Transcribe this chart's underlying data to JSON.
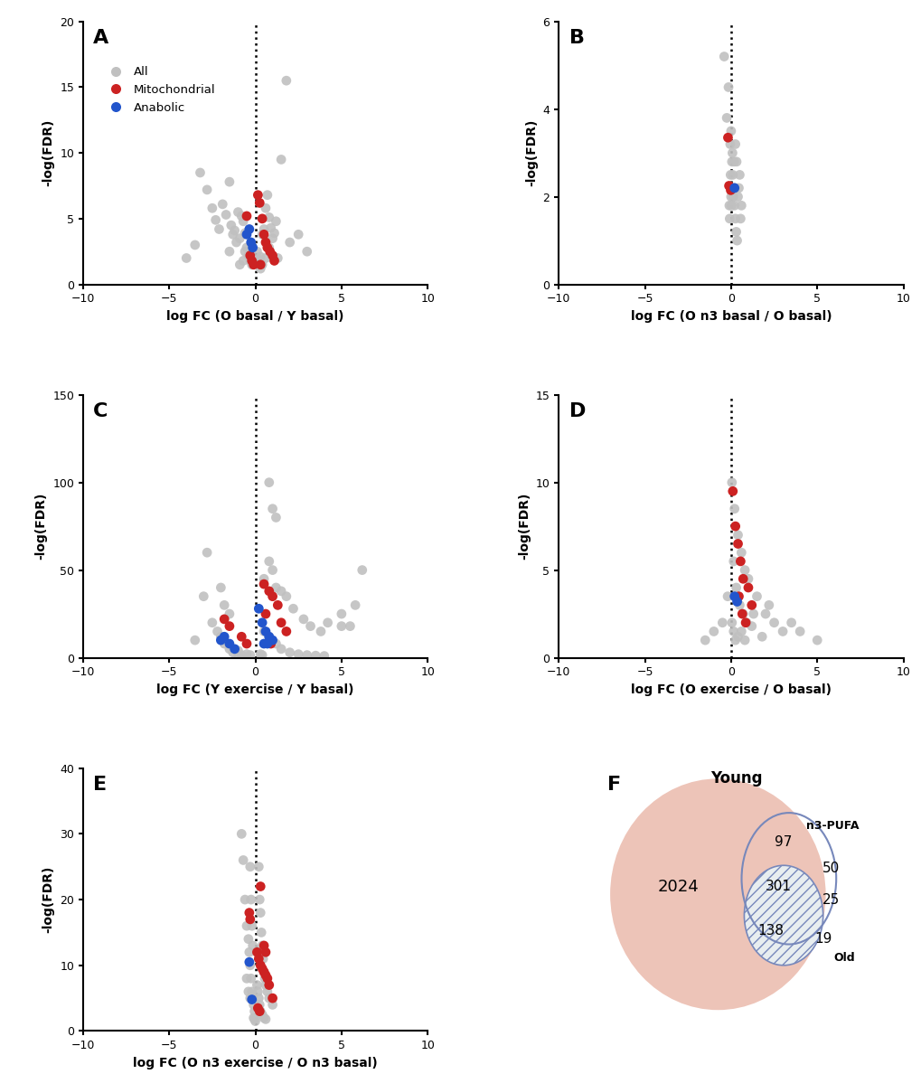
{
  "panels": {
    "A": {
      "xlabel": "log FC (O basal / Y basal)",
      "ylim": [
        0,
        20
      ],
      "yticks": [
        0,
        5,
        10,
        15,
        20
      ],
      "gray_points": [
        [
          -3.2,
          8.5
        ],
        [
          -2.8,
          7.2
        ],
        [
          -2.5,
          5.8
        ],
        [
          -2.3,
          4.9
        ],
        [
          -2.1,
          4.2
        ],
        [
          -1.9,
          6.1
        ],
        [
          -1.7,
          5.3
        ],
        [
          -1.5,
          7.8
        ],
        [
          -1.4,
          4.5
        ],
        [
          -1.3,
          3.8
        ],
        [
          -1.2,
          4.1
        ],
        [
          -1.1,
          3.2
        ],
        [
          -1.0,
          5.5
        ],
        [
          -0.9,
          3.5
        ],
        [
          -0.8,
          5.2
        ],
        [
          -0.7,
          4.8
        ],
        [
          -0.6,
          3.9
        ],
        [
          -0.5,
          2.8
        ],
        [
          -0.4,
          2.2
        ],
        [
          -0.3,
          1.8
        ],
        [
          -0.2,
          1.5
        ],
        [
          0.1,
          2.5
        ],
        [
          0.2,
          1.9
        ],
        [
          0.3,
          2.1
        ],
        [
          0.4,
          3.8
        ],
        [
          0.5,
          4.2
        ],
        [
          0.6,
          5.8
        ],
        [
          0.7,
          6.8
        ],
        [
          0.8,
          5.1
        ],
        [
          0.9,
          4.3
        ],
        [
          1.0,
          3.5
        ],
        [
          1.2,
          4.8
        ],
        [
          1.5,
          9.5
        ],
        [
          1.8,
          15.5
        ],
        [
          2.0,
          3.2
        ],
        [
          2.5,
          3.8
        ],
        [
          3.0,
          2.5
        ],
        [
          -3.5,
          3.0
        ],
        [
          -4.0,
          2.0
        ],
        [
          -0.6,
          2.5
        ],
        [
          0.3,
          1.2
        ],
        [
          0.8,
          2.8
        ],
        [
          1.1,
          3.9
        ],
        [
          -0.9,
          1.5
        ],
        [
          -1.5,
          2.5
        ],
        [
          0.4,
          1.5
        ],
        [
          -0.2,
          3.0
        ],
        [
          0.6,
          2.0
        ],
        [
          -0.7,
          1.8
        ],
        [
          1.3,
          2.0
        ]
      ],
      "red_points": [
        [
          -0.5,
          5.2
        ],
        [
          -0.3,
          2.2
        ],
        [
          -0.2,
          1.8
        ],
        [
          -0.1,
          1.5
        ],
        [
          0.15,
          6.8
        ],
        [
          0.25,
          6.2
        ],
        [
          0.4,
          5.0
        ],
        [
          0.5,
          3.8
        ],
        [
          0.6,
          3.2
        ],
        [
          0.7,
          2.8
        ],
        [
          0.85,
          2.5
        ],
        [
          1.0,
          2.2
        ],
        [
          1.1,
          1.8
        ],
        [
          0.3,
          1.5
        ]
      ],
      "blue_points": [
        [
          -0.5,
          3.8
        ],
        [
          -0.35,
          4.2
        ],
        [
          -0.25,
          3.2
        ],
        [
          -0.15,
          2.8
        ]
      ]
    },
    "B": {
      "xlabel": "log FC (O n3 basal / O basal)",
      "ylim": [
        0,
        6
      ],
      "yticks": [
        0,
        2,
        4,
        6
      ],
      "gray_points": [
        [
          -0.4,
          5.2
        ],
        [
          -0.25,
          3.8
        ],
        [
          -0.15,
          4.5
        ],
        [
          -0.05,
          3.2
        ],
        [
          0.0,
          3.5
        ],
        [
          0.05,
          2.8
        ],
        [
          0.1,
          2.5
        ],
        [
          0.15,
          2.2
        ],
        [
          0.2,
          1.8
        ],
        [
          0.25,
          1.5
        ],
        [
          0.3,
          1.2
        ],
        [
          0.35,
          1.0
        ],
        [
          0.4,
          2.0
        ],
        [
          0.5,
          2.5
        ],
        [
          0.55,
          1.5
        ],
        [
          -0.1,
          1.8
        ],
        [
          0.08,
          3.0
        ],
        [
          0.12,
          2.0
        ],
        [
          -0.03,
          2.5
        ],
        [
          0.02,
          1.8
        ],
        [
          0.18,
          2.8
        ],
        [
          0.22,
          2.2
        ],
        [
          -0.08,
          1.5
        ],
        [
          0.32,
          2.8
        ],
        [
          0.45,
          2.2
        ],
        [
          0.6,
          1.8
        ],
        [
          0.0,
          2.0
        ],
        [
          0.25,
          3.2
        ]
      ],
      "red_points": [
        [
          -0.18,
          3.35
        ],
        [
          -0.12,
          2.25
        ],
        [
          -0.02,
          2.15
        ]
      ],
      "blue_points": [
        [
          0.2,
          2.2
        ]
      ]
    },
    "C": {
      "xlabel": "log FC (Y exercise / Y basal)",
      "ylim": [
        0,
        150
      ],
      "yticks": [
        0,
        50,
        100,
        150
      ],
      "gray_points": [
        [
          -3.0,
          35
        ],
        [
          -2.5,
          20
        ],
        [
          -2.2,
          15
        ],
        [
          -2.0,
          12
        ],
        [
          -1.8,
          8
        ],
        [
          -1.5,
          5
        ],
        [
          -1.3,
          3
        ],
        [
          -1.0,
          2
        ],
        [
          -0.8,
          1.5
        ],
        [
          -3.5,
          10
        ],
        [
          -2.8,
          60
        ],
        [
          -2.0,
          40
        ],
        [
          -1.5,
          25
        ],
        [
          0.5,
          45
        ],
        [
          0.8,
          55
        ],
        [
          1.0,
          50
        ],
        [
          1.2,
          40
        ],
        [
          1.5,
          38
        ],
        [
          1.8,
          35
        ],
        [
          2.2,
          28
        ],
        [
          2.8,
          22
        ],
        [
          3.2,
          18
        ],
        [
          3.8,
          15
        ],
        [
          4.2,
          20
        ],
        [
          5.0,
          25
        ],
        [
          5.8,
          30
        ],
        [
          6.2,
          50
        ],
        [
          0.8,
          100
        ],
        [
          1.0,
          85
        ],
        [
          1.2,
          80
        ],
        [
          0.5,
          15
        ],
        [
          0.8,
          12
        ],
        [
          1.2,
          8
        ],
        [
          1.5,
          5
        ],
        [
          2.0,
          3
        ],
        [
          2.5,
          2
        ],
        [
          3.0,
          1.5
        ],
        [
          3.5,
          1.2
        ],
        [
          4.0,
          1.0
        ],
        [
          -0.5,
          2
        ],
        [
          -0.3,
          1.5
        ],
        [
          5.0,
          18
        ],
        [
          5.5,
          18
        ],
        [
          0.3,
          2
        ],
        [
          0.4,
          1.5
        ],
        [
          -1.0,
          4
        ],
        [
          -1.8,
          30
        ]
      ],
      "red_points": [
        [
          -1.8,
          22
        ],
        [
          -1.5,
          18
        ],
        [
          -0.8,
          12
        ],
        [
          -0.5,
          8
        ],
        [
          0.5,
          42
        ],
        [
          0.8,
          38
        ],
        [
          1.0,
          35
        ],
        [
          1.3,
          30
        ],
        [
          1.5,
          20
        ],
        [
          1.8,
          15
        ],
        [
          0.6,
          25
        ],
        [
          0.9,
          8
        ]
      ],
      "blue_points": [
        [
          -2.0,
          10
        ],
        [
          -1.8,
          12
        ],
        [
          -1.5,
          8
        ],
        [
          -1.2,
          5
        ],
        [
          0.2,
          28
        ],
        [
          0.4,
          20
        ],
        [
          0.6,
          15
        ],
        [
          0.8,
          12
        ],
        [
          1.0,
          10
        ],
        [
          0.5,
          8
        ],
        [
          0.7,
          8
        ]
      ]
    },
    "D": {
      "xlabel": "log FC (O exercise / O basal)",
      "ylim": [
        0,
        15
      ],
      "yticks": [
        0,
        5,
        10,
        15
      ],
      "gray_points": [
        [
          0.05,
          10.0
        ],
        [
          0.2,
          8.5
        ],
        [
          0.4,
          7.0
        ],
        [
          0.6,
          6.0
        ],
        [
          0.8,
          5.0
        ],
        [
          1.0,
          4.5
        ],
        [
          1.5,
          3.5
        ],
        [
          2.0,
          2.5
        ],
        [
          2.5,
          2.0
        ],
        [
          3.0,
          1.5
        ],
        [
          0.15,
          5.5
        ],
        [
          0.3,
          4.0
        ],
        [
          0.5,
          3.0
        ],
        [
          0.7,
          2.5
        ],
        [
          0.9,
          2.0
        ],
        [
          1.2,
          1.8
        ],
        [
          1.8,
          1.2
        ],
        [
          4.0,
          1.5
        ],
        [
          5.0,
          1.0
        ],
        [
          -0.2,
          3.5
        ],
        [
          -0.5,
          2.0
        ],
        [
          -1.0,
          1.5
        ],
        [
          -1.5,
          1.0
        ],
        [
          0.05,
          2.0
        ],
        [
          0.15,
          1.5
        ],
        [
          0.25,
          1.0
        ],
        [
          1.3,
          2.5
        ],
        [
          2.2,
          3.0
        ],
        [
          0.4,
          1.2
        ],
        [
          0.6,
          1.5
        ],
        [
          0.8,
          1.0
        ],
        [
          3.5,
          2.0
        ]
      ],
      "red_points": [
        [
          0.1,
          9.5
        ],
        [
          0.25,
          7.5
        ],
        [
          0.4,
          6.5
        ],
        [
          0.55,
          5.5
        ],
        [
          0.7,
          4.5
        ],
        [
          1.0,
          4.0
        ],
        [
          1.2,
          3.0
        ],
        [
          0.45,
          3.5
        ],
        [
          0.65,
          2.5
        ],
        [
          0.85,
          2.0
        ]
      ],
      "blue_points": [
        [
          0.2,
          3.5
        ],
        [
          0.35,
          3.2
        ]
      ]
    },
    "E": {
      "xlabel": "log FC (O n3 exercise / O n3 basal)",
      "ylim": [
        0,
        40
      ],
      "yticks": [
        0,
        10,
        20,
        30,
        40
      ],
      "gray_points": [
        [
          -0.8,
          30
        ],
        [
          -0.7,
          26
        ],
        [
          -0.6,
          20
        ],
        [
          -0.5,
          16
        ],
        [
          -0.4,
          14
        ],
        [
          -0.35,
          12
        ],
        [
          -0.3,
          10
        ],
        [
          -0.25,
          8
        ],
        [
          -0.2,
          6
        ],
        [
          -0.15,
          5
        ],
        [
          -0.1,
          4
        ],
        [
          -0.05,
          3
        ],
        [
          -0.3,
          25
        ],
        [
          -0.25,
          20
        ],
        [
          -0.2,
          16
        ],
        [
          -0.15,
          13
        ],
        [
          0.2,
          25
        ],
        [
          0.25,
          20
        ],
        [
          0.3,
          18
        ],
        [
          0.35,
          15
        ],
        [
          0.4,
          13
        ],
        [
          0.45,
          11
        ],
        [
          0.5,
          9
        ],
        [
          0.55,
          8
        ],
        [
          0.6,
          7
        ],
        [
          0.7,
          6
        ],
        [
          0.8,
          5
        ],
        [
          1.0,
          4
        ],
        [
          0.1,
          7
        ],
        [
          0.15,
          6
        ],
        [
          0.2,
          5
        ],
        [
          0.25,
          4
        ],
        [
          0.3,
          3
        ],
        [
          0.4,
          2.5
        ],
        [
          0.5,
          2
        ],
        [
          0.6,
          1.8
        ],
        [
          -0.1,
          2
        ],
        [
          -0.05,
          1.8
        ],
        [
          0.0,
          1.5
        ],
        [
          -0.5,
          8
        ],
        [
          -0.4,
          6
        ],
        [
          -0.3,
          5
        ]
      ],
      "red_points": [
        [
          -0.35,
          18
        ],
        [
          -0.3,
          17
        ],
        [
          0.3,
          22
        ],
        [
          0.5,
          13
        ],
        [
          0.6,
          12
        ],
        [
          0.1,
          12
        ],
        [
          0.2,
          11
        ],
        [
          0.3,
          10
        ],
        [
          0.4,
          9.5
        ],
        [
          0.5,
          9
        ],
        [
          0.6,
          8.5
        ],
        [
          0.7,
          8
        ],
        [
          0.8,
          7
        ],
        [
          1.0,
          5
        ],
        [
          0.15,
          3.5
        ],
        [
          0.25,
          3.0
        ]
      ],
      "blue_points": [
        [
          -0.35,
          10.5
        ],
        [
          -0.2,
          4.8
        ]
      ]
    }
  },
  "venn": {
    "young_count": 2024,
    "n3pufa_count": 97,
    "young_n3_shared": 301,
    "old_exclusive": 19,
    "n3pufa_old_shared": 50,
    "triple_overlap": 138,
    "young_n3_only": 25,
    "old_label": "Old",
    "young_label": "Young",
    "n3pufa_label": "n3-PUFA"
  },
  "colors": {
    "gray": "#C0C0C0",
    "red": "#CC2222",
    "blue": "#2255CC",
    "background": "#FFFFFF",
    "young_fill": "#E8B0A0",
    "n3_stroke": "#7788BB",
    "old_stroke": "#7788BB"
  },
  "panel_labels": [
    "A",
    "B",
    "C",
    "D",
    "E",
    "F"
  ],
  "xlim": [
    -10,
    10
  ],
  "xticks": [
    -10,
    -5,
    0,
    5,
    10
  ],
  "ylabel": "-log(FDR)"
}
